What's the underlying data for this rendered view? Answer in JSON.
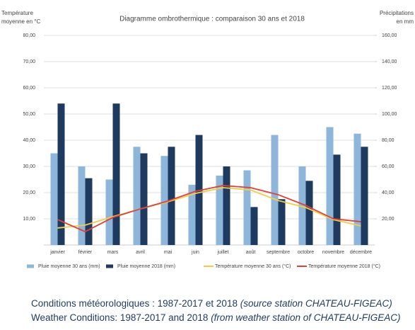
{
  "chart_data": {
    "type": "bar-line",
    "title": "Diagramme ombrothermique : comparaison 30 ans et 2018",
    "y_label": [
      "Température",
      "moyenne  en °C"
    ],
    "y2_label": [
      "Précipitations",
      "en mm"
    ],
    "categories": [
      "janvier",
      "février",
      "mars",
      "avril",
      "mai",
      "juin",
      "juillet",
      "août",
      "septembre",
      "octobre",
      "novembre",
      "décembre"
    ],
    "series": [
      {
        "name": "Pluie moyenne 30 ans (mm)",
        "type": "bar",
        "axis": "y2",
        "color": "#8db6da",
        "values": [
          70,
          60,
          50,
          75,
          68,
          46,
          53,
          57,
          84,
          60,
          90,
          85
        ]
      },
      {
        "name": "Pluie moyenne 2018 (mm)",
        "type": "bar",
        "axis": "y2",
        "color": "#1f3a5f",
        "values": [
          108,
          51,
          108,
          70,
          75,
          84,
          60,
          29,
          35,
          49,
          69,
          75
        ]
      },
      {
        "name": "Température moyenne 30 ans (°C)",
        "type": "line",
        "axis": "y",
        "color": "#f0cf45",
        "values": [
          6.5,
          7.6,
          10.8,
          13.8,
          16.5,
          19.7,
          21.9,
          21,
          17,
          14.3,
          9.7,
          7.3
        ]
      },
      {
        "name": "Température moyenne 2018 (°C)",
        "type": "line",
        "axis": "y",
        "color": "#e0403a",
        "values": [
          9.7,
          5.1,
          10.5,
          13.8,
          16.8,
          20.5,
          22.7,
          21.9,
          19.2,
          15.1,
          10,
          8.9
        ]
      }
    ],
    "ylim": [
      0,
      80
    ],
    "yticks": [
      {
        "value": 10,
        "label": "10,00"
      },
      {
        "value": 20,
        "label": "20,00"
      },
      {
        "value": 30,
        "label": "30,00"
      },
      {
        "value": 40,
        "label": "40,00"
      },
      {
        "value": 50,
        "label": "50,00"
      },
      {
        "value": 60,
        "label": "60,00"
      },
      {
        "value": 70,
        "label": "70,00"
      },
      {
        "value": 80,
        "label": "80,00"
      }
    ],
    "y2lim": [
      0,
      160
    ],
    "y2ticks": [
      {
        "value": 20,
        "label": "20,00"
      },
      {
        "value": 40,
        "label": "40,00"
      },
      {
        "value": 60,
        "label": "60,00"
      },
      {
        "value": 80,
        "label": "80,00"
      },
      {
        "value": 100,
        "label": "100,00"
      },
      {
        "value": 120,
        "label": "120,00"
      },
      {
        "value": 140,
        "label": "140,00"
      },
      {
        "value": 160,
        "label": "160,00"
      }
    ],
    "grid": true,
    "legend": "bottom",
    "captions": [
      {
        "text": "Conditions météorologiques : 1987-2017 et 2018 ",
        "italic": "(source station CHATEAU-FIGEAC)"
      },
      {
        "text": "Weather Conditions: 1987-2017 and 2018 ",
        "italic": "(from weather station of CHATEAU-FIGEAC)"
      }
    ]
  }
}
